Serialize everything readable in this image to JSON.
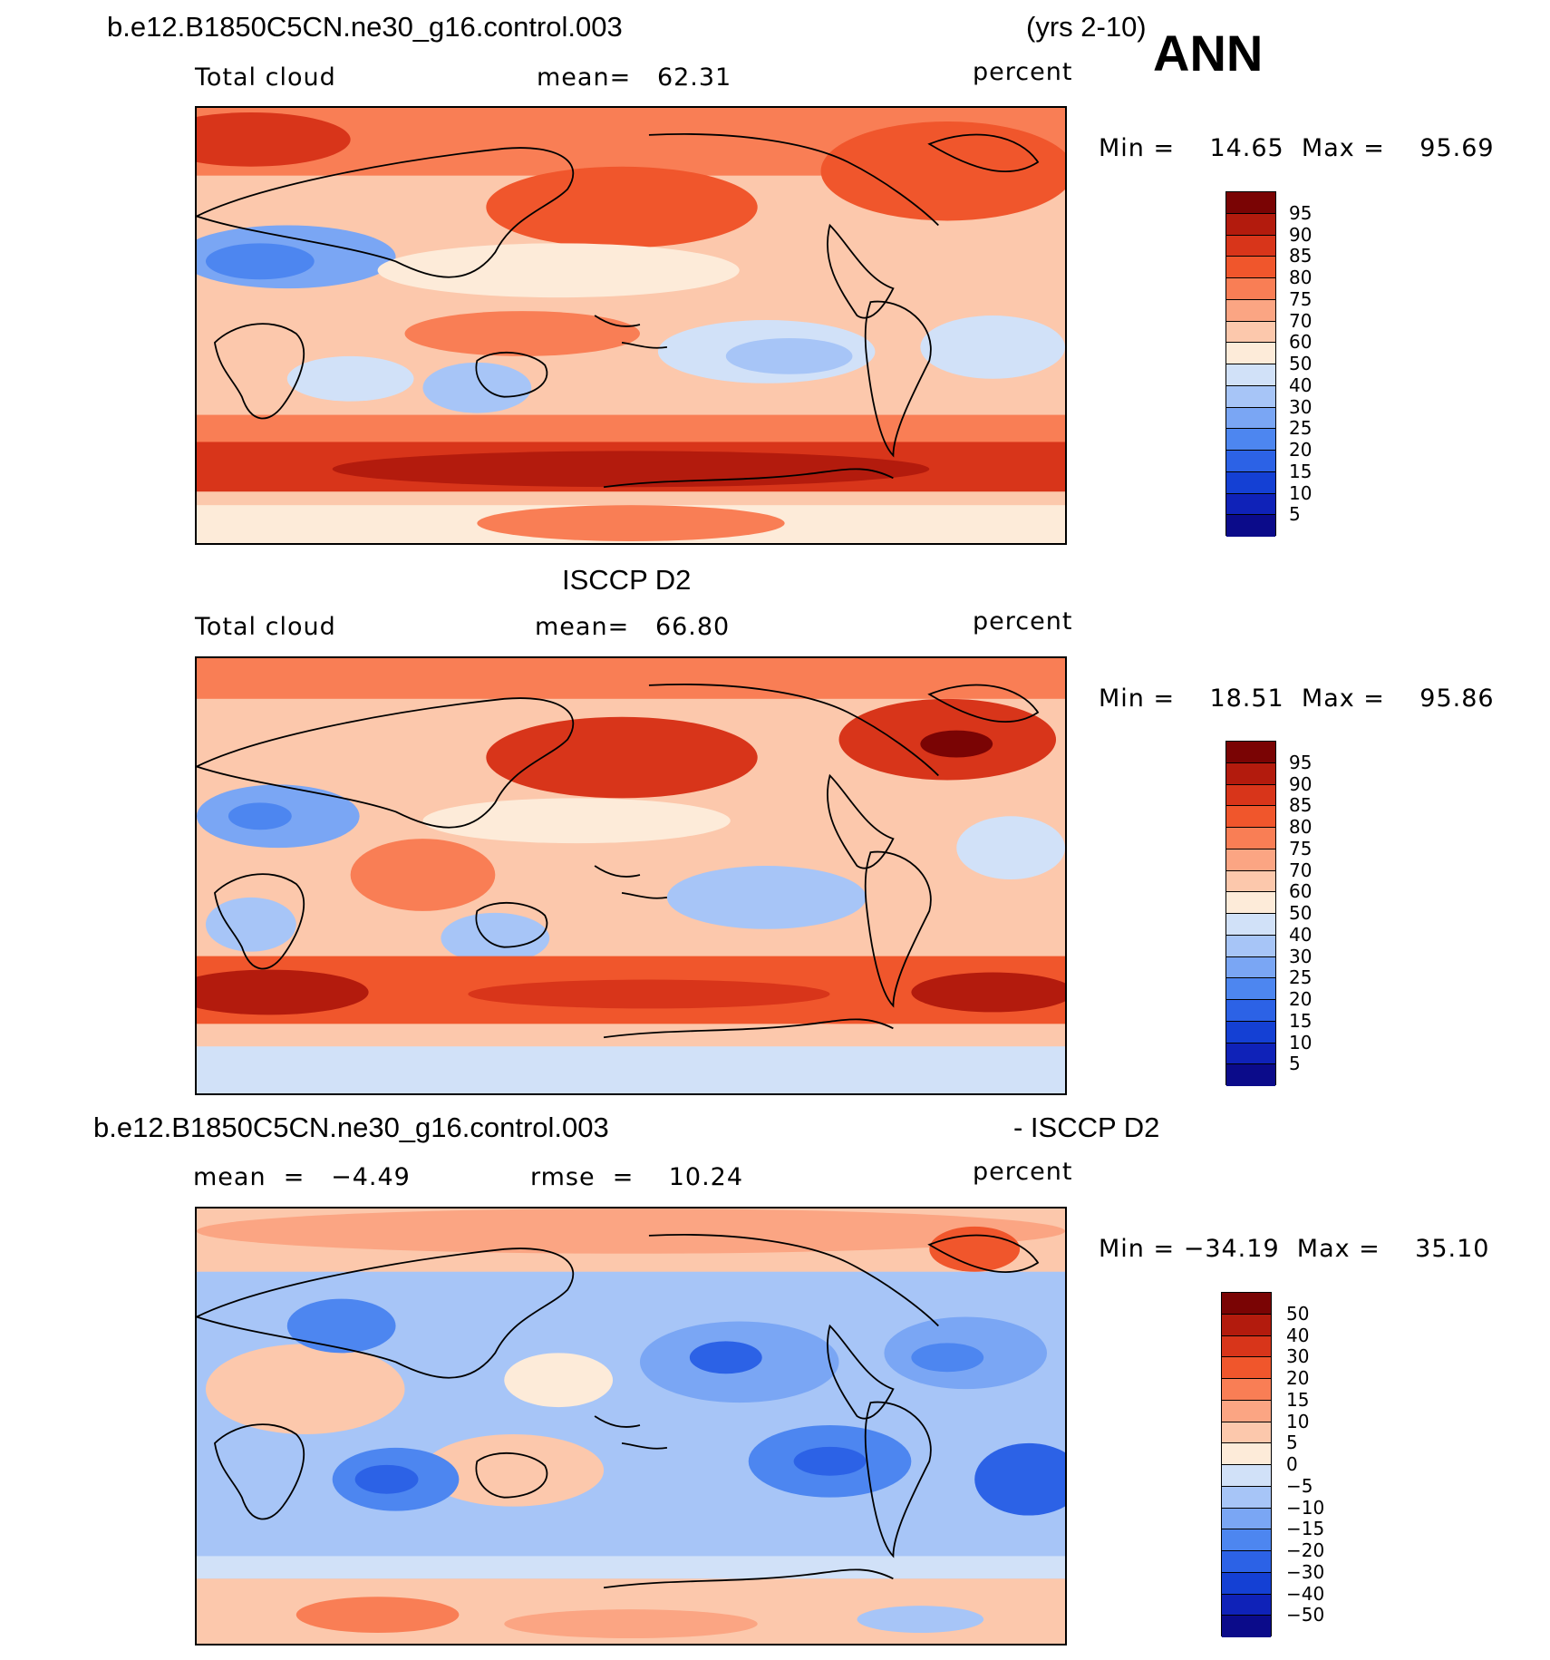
{
  "header": {
    "case_name": "b.e12.B1850C5CN.ne30_g16.control.003",
    "years": "(yrs 2-10)",
    "season": "ANN"
  },
  "colors": {
    "std_scale": [
      "#0b0b8a",
      "#0f22b8",
      "#1440d4",
      "#2c62e6",
      "#4d86f0",
      "#7aa6f4",
      "#a7c5f7",
      "#d1e1f8",
      "#fdebd9",
      "#fcc8ac",
      "#fba583",
      "#f97e55",
      "#f0562c",
      "#d8351a",
      "#b31b0d",
      "#7a0404"
    ],
    "diff_scale": [
      "#0b0b8a",
      "#0f22b8",
      "#1440d4",
      "#2c62e6",
      "#4d86f0",
      "#7aa6f4",
      "#a7c5f7",
      "#d1e1f8",
      "#fdebd9",
      "#fcc8ac",
      "#fba583",
      "#f97e55",
      "#f0562c",
      "#d8351a",
      "#b31b0d",
      "#7a0404"
    ]
  },
  "panels": [
    {
      "title": "",
      "variable": "Total cloud",
      "stat_text": "mean=   62.31",
      "units": "percent",
      "minmax": "Min =    14.65  Max =    95.69",
      "colorbar_labels": [
        "95",
        "90",
        "85",
        "80",
        "75",
        "70",
        "60",
        "50",
        "40",
        "30",
        "25",
        "20",
        "15",
        "10",
        "5"
      ]
    },
    {
      "title": "ISCCP D2",
      "variable": "Total cloud",
      "stat_text": "mean=   66.80",
      "units": "percent",
      "minmax": "Min =    18.51  Max =    95.86",
      "colorbar_labels": [
        "95",
        "90",
        "85",
        "80",
        "75",
        "70",
        "60",
        "50",
        "40",
        "30",
        "25",
        "20",
        "15",
        "10",
        "5"
      ]
    },
    {
      "title_left": "b.e12.B1850C5CN.ne30_g16.control.003",
      "title_right": "- ISCCP D2",
      "variable": "mean  =   −4.49",
      "stat_text": "rmse  =    10.24",
      "units": "percent",
      "minmax": "Min = −34.19  Max =    35.10",
      "colorbar_labels": [
        "50",
        "40",
        "30",
        "20",
        "15",
        "10",
        "5",
        "0",
        "−5",
        "−10",
        "−15",
        "−20",
        "−30",
        "−40",
        "−50"
      ]
    }
  ]
}
